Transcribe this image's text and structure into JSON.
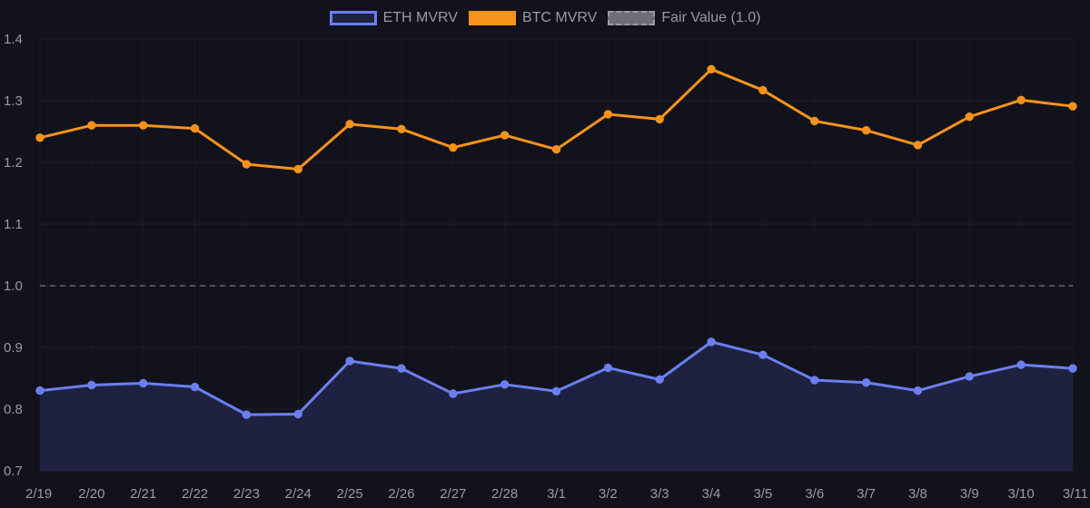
{
  "chart_data": {
    "type": "line",
    "title": "",
    "xlabel": "",
    "ylabel": "",
    "ylim": [
      0.7,
      1.4
    ],
    "y_ticks": [
      "0.7",
      "0.8",
      "0.9",
      "1.0",
      "1.1",
      "1.2",
      "1.3",
      "1.4"
    ],
    "categories": [
      "2/19",
      "2/20",
      "2/21",
      "2/22",
      "2/23",
      "2/24",
      "2/25",
      "2/26",
      "2/27",
      "2/28",
      "3/1",
      "3/2",
      "3/3",
      "3/4",
      "3/5",
      "3/6",
      "3/7",
      "3/8",
      "3/9",
      "3/10",
      "3/11"
    ],
    "series": [
      {
        "name": "ETH MVRV",
        "color": "#6b7ff0",
        "fill": "#1e2240",
        "values": [
          0.83,
          0.839,
          0.842,
          0.836,
          0.791,
          0.792,
          0.878,
          0.866,
          0.825,
          0.84,
          0.829,
          0.867,
          0.848,
          0.909,
          0.888,
          0.847,
          0.843,
          0.83,
          0.853,
          0.872,
          0.866
        ]
      },
      {
        "name": "BTC MVRV",
        "color": "#f7931a",
        "values": [
          1.24,
          1.26,
          1.26,
          1.255,
          1.197,
          1.189,
          1.262,
          1.254,
          1.224,
          1.244,
          1.221,
          1.278,
          1.27,
          1.351,
          1.317,
          1.267,
          1.252,
          1.228,
          1.274,
          1.301,
          1.291
        ]
      }
    ],
    "reference_line": {
      "name": "Fair Value (1.0)",
      "value": 1.0,
      "color": "#7a7a84"
    },
    "legend_position": "top-center",
    "grid": true
  }
}
